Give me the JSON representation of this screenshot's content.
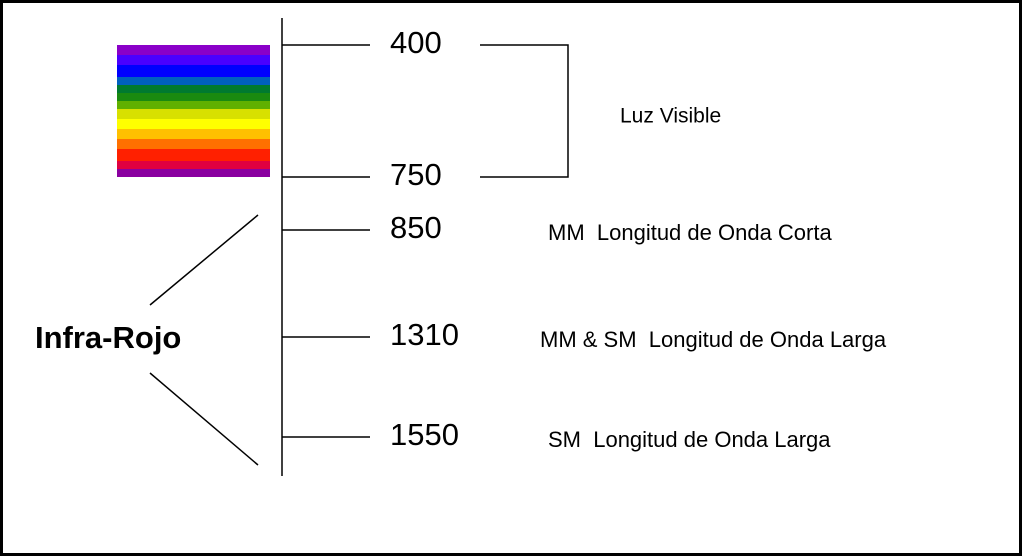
{
  "group_label": "Infra-Rojo",
  "visible_label": "Luz Visible",
  "ticks": [
    {
      "label": "400"
    },
    {
      "label": "750"
    },
    {
      "label": "850",
      "description": "MM  Longitud de Onda Corta"
    },
    {
      "label": "1310",
      "description": "MM & SM  Longitud de Onda Larga"
    },
    {
      "label": "1550",
      "description": "SM  Longitud de Onda Larga"
    }
  ]
}
